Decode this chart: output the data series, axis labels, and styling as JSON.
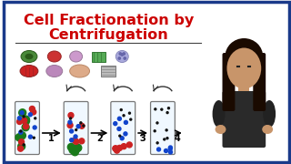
{
  "title_line1": "Cell Fractionation by",
  "title_line2": "Centrifugation",
  "title_color": "#cc0000",
  "title_fontsize": 11.5,
  "bg_color": "#ffffff",
  "border_color": "#1a3a8a",
  "particle_colors": {
    "large_green": "#1a7a1a",
    "medium_red": "#cc2222",
    "small_blue": "#1144cc",
    "tiny_black": "#111111"
  },
  "tube_bg": "#f0f8ff",
  "tube_edge": "#777777",
  "person_skin": "#c8956a",
  "person_hair": "#1a0a00",
  "person_shirt": "#1a1a1a"
}
